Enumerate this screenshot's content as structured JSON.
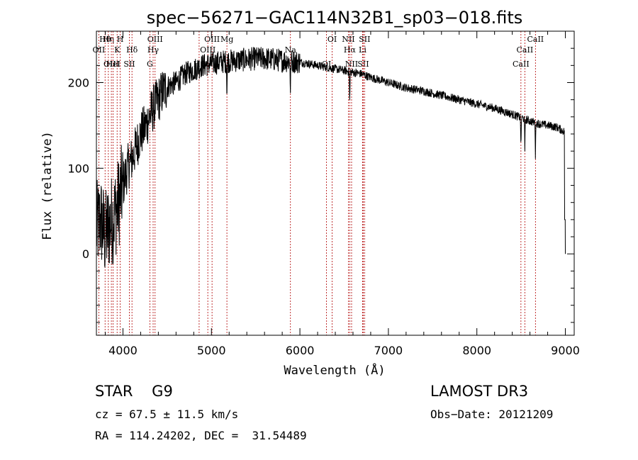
{
  "chart_data": {
    "type": "line",
    "title": "spec−56271−GAC114N32B1_sp03−018.fits",
    "xlabel": "Wavelength (Å)",
    "ylabel": "Flux (relative)",
    "xlim": [
      3700,
      9100
    ],
    "ylim": [
      -95,
      260
    ],
    "xticks": [
      "4000",
      "5000",
      "6000",
      "7000",
      "8000",
      "9000"
    ],
    "xtick_values": [
      4000,
      5000,
      6000,
      7000,
      8000,
      9000
    ],
    "yticks": [
      "0",
      "100",
      "200"
    ],
    "ytick_values": [
      0,
      100,
      200
    ],
    "spectrum_anchor_x": [
      3700,
      3750,
      3800,
      3850,
      3900,
      3950,
      4000,
      4050,
      4100,
      4150,
      4200,
      4250,
      4300,
      4350,
      4400,
      4450,
      4500,
      4550,
      4600,
      4650,
      4700,
      4800,
      4900,
      5000,
      5100,
      5200,
      5300,
      5400,
      5500,
      5600,
      5700,
      5800,
      5900,
      6000,
      6100,
      6200,
      6300,
      6400,
      6500,
      6600,
      6700,
      6800,
      6900,
      7000,
      7200,
      7400,
      7600,
      7800,
      8000,
      8200,
      8400,
      8600,
      8700,
      8800,
      8900,
      9000
    ],
    "spectrum_anchor_y": [
      30,
      40,
      20,
      35,
      45,
      60,
      80,
      100,
      110,
      125,
      140,
      148,
      160,
      172,
      180,
      190,
      195,
      198,
      200,
      205,
      210,
      215,
      220,
      222,
      224,
      225,
      226,
      227,
      228,
      228,
      227,
      226,
      225,
      224,
      222,
      220,
      218,
      216,
      214,
      212,
      210,
      206,
      203,
      200,
      194,
      190,
      185,
      180,
      175,
      170,
      163,
      155,
      152,
      150,
      148,
      142
    ],
    "spectral_lines": [
      {
        "name": "Hθ",
        "wavelength": 3798
      },
      {
        "name": "OII",
        "wavelength": 3727
      },
      {
        "name": "OIII",
        "wavelength": 3869
      },
      {
        "name": "Hη",
        "wavelength": 3835
      },
      {
        "name": "K",
        "wavelength": 3934
      },
      {
        "name": "HeI",
        "wavelength": 3889
      },
      {
        "name": "H",
        "wavelength": 3969
      },
      {
        "name": "Hδ",
        "wavelength": 4102
      },
      {
        "name": "SII",
        "wavelength": 4072
      },
      {
        "name": "OIII",
        "wavelength": 4363
      },
      {
        "name": "Hγ",
        "wavelength": 4341
      },
      {
        "name": "G",
        "wavelength": 4304
      },
      {
        "name": "OIII",
        "wavelength": 5007
      },
      {
        "name": "OIII",
        "wavelength": 4959
      },
      {
        "name": "Hβ",
        "wavelength": 4861
      },
      {
        "name": "Mg",
        "wavelength": 5175
      },
      {
        "name": "Na",
        "wavelength": 5893
      },
      {
        "name": "OI",
        "wavelength": 6300
      },
      {
        "name": "OI",
        "wavelength": 6364
      },
      {
        "name": "Hα",
        "wavelength": 6563
      },
      {
        "name": "SII",
        "wavelength": 6716
      },
      {
        "name": "NII",
        "wavelength": 6548
      },
      {
        "name": "Li",
        "wavelength": 6708
      },
      {
        "name": "NII",
        "wavelength": 6584
      },
      {
        "name": "SII",
        "wavelength": 6731
      },
      {
        "name": "CaII",
        "wavelength": 8542
      },
      {
        "name": "CaII",
        "wavelength": 8498
      },
      {
        "name": "CaII",
        "wavelength": 8662
      }
    ]
  },
  "footer": {
    "class_label": "STAR    G9",
    "survey": "LAMOST DR3",
    "cz": "cz = 67.5 ± 11.5 km/s",
    "obs_date": "Obs−Date: 20121209",
    "radec": "RA = 114.24202, DEC =  31.54489"
  },
  "colors": {
    "spectrum": "#000000",
    "line_marker": "#b00000",
    "axis": "#000000"
  }
}
